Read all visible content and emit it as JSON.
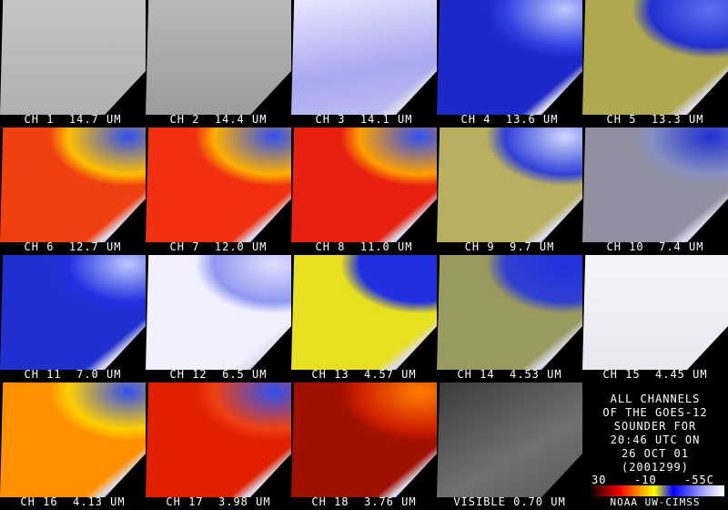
{
  "panels": [
    {
      "label": "CH 1  14.7 UM"
    },
    {
      "label": "CH 2  14.4 UM"
    },
    {
      "label": "CH 3  14.1 UM"
    },
    {
      "label": "CH 4  13.6 UM"
    },
    {
      "label": "CH 5  13.3 UM"
    },
    {
      "label": "CH 6  12.7 UM"
    },
    {
      "label": "CH 7  12.0 UM"
    },
    {
      "label": "CH 8  11.0 UM"
    },
    {
      "label": "CH 9  9.7 UM"
    },
    {
      "label": "CH 10  7.4 UM"
    },
    {
      "label": "CH 11  7.0 UM"
    },
    {
      "label": "CH 12  6.5 UM"
    },
    {
      "label": "CH 13  4.57 UM"
    },
    {
      "label": "CH 14  4.53 UM"
    },
    {
      "label": "CH 15  4.45 UM"
    },
    {
      "label": "CH 16  4.13 UM"
    },
    {
      "label": "CH 17  3.98 UM"
    },
    {
      "label": "CH 18  3.76 UM"
    },
    {
      "label": "VISIBLE 0.70 UM"
    }
  ],
  "info": {
    "lines": [
      "ALL CHANNELS",
      "OF THE GOES-12",
      "SOUNDER FOR",
      "20:46 UTC ON",
      "26 OCT 01",
      "(2001299)"
    ]
  },
  "colorbar": {
    "labels": [
      "30",
      "-10",
      "-55C"
    ]
  },
  "credit": "NOAA UW-CIMSS"
}
